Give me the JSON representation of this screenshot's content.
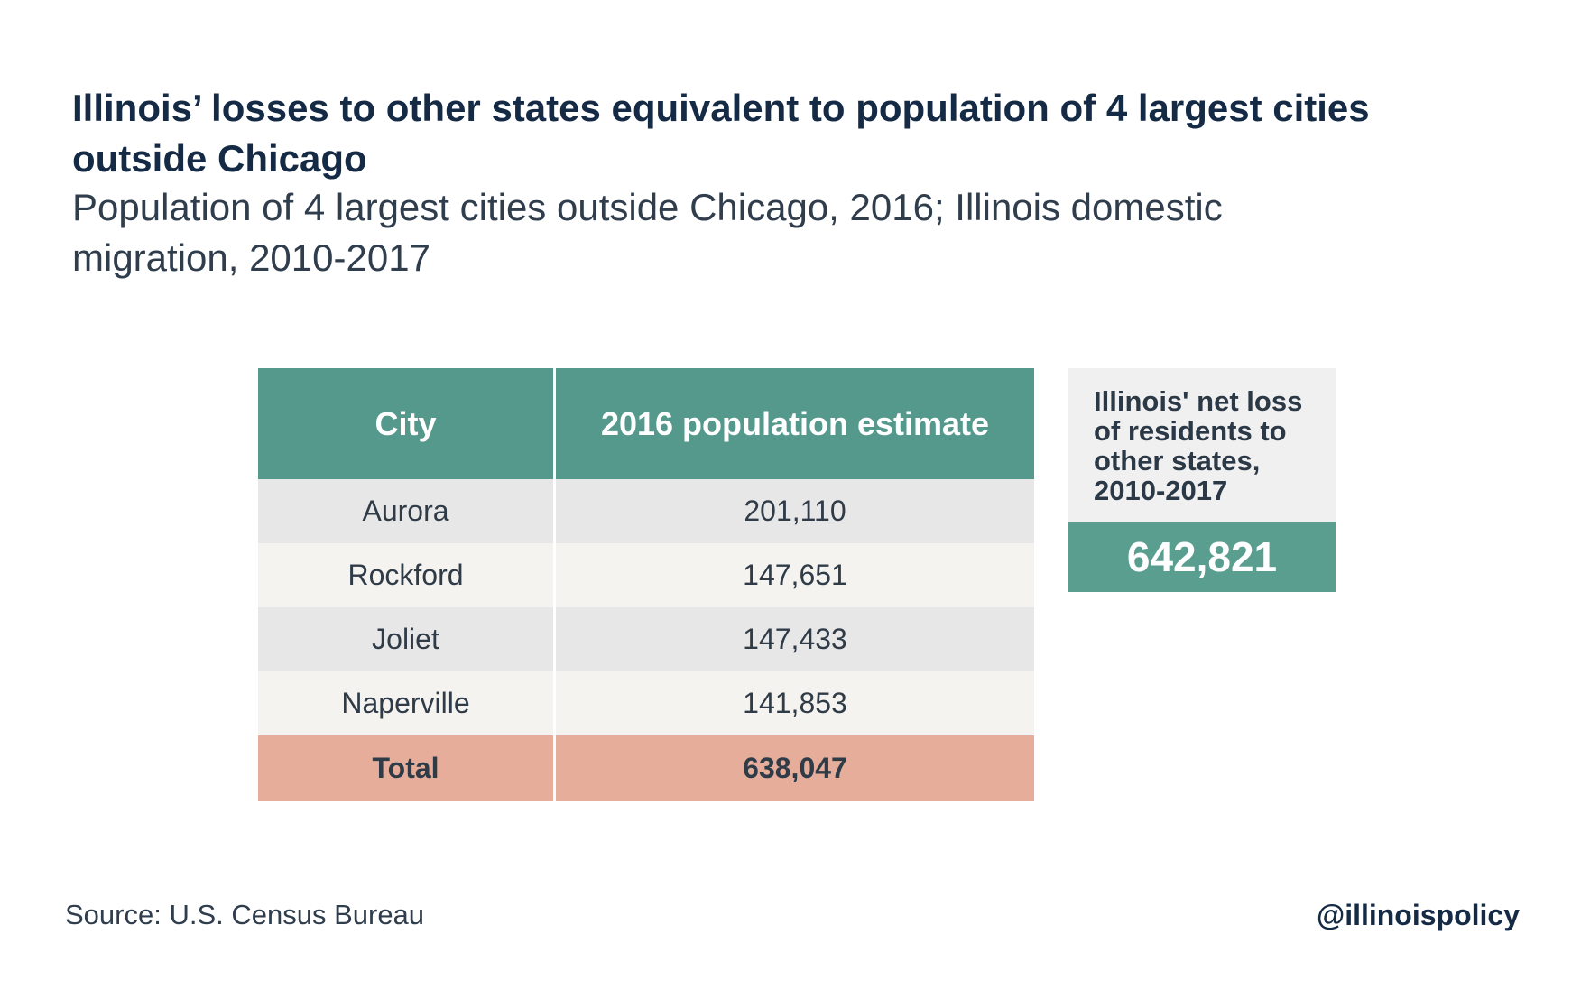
{
  "chart_data": {
    "type": "table",
    "title": "Illinois’ losses to other states equivalent to population of 4 largest cities outside Chicago",
    "subtitle": "Population of 4 largest cities outside Chicago, 2016; Illinois domestic migration, 2010-2017",
    "columns": [
      "City",
      "2016 population estimate"
    ],
    "rows": [
      [
        "Aurora",
        "201,110"
      ],
      [
        "Rockford",
        "147,651"
      ],
      [
        "Joliet",
        "147,433"
      ],
      [
        "Naperville",
        "141,853"
      ]
    ],
    "total_row": [
      "Total",
      "638,047"
    ],
    "callout": {
      "label": "Illinois' net loss of residents to other states, 2010-2017",
      "value": "642,821"
    },
    "source": "Source: U.S. Census Bureau",
    "handle": "@illinoispolicy"
  },
  "colors": {
    "header": "#55998c",
    "row_odd": "#e8e7e8",
    "row_even": "#f5f3f0",
    "total": "#e5ad9a",
    "callout_label_bg": "#f0f0f1",
    "callout_value_bg": "#5a9e8f"
  }
}
